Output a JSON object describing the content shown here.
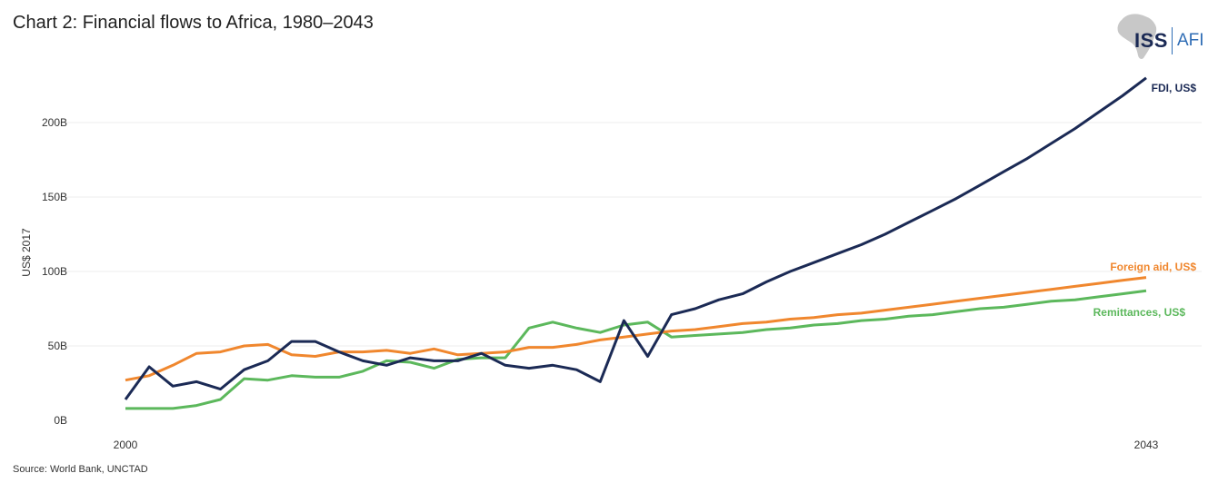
{
  "title": "Chart 2: Financial flows to Africa, 1980–2043",
  "source": "Source: World Bank, UNCTAD",
  "logo": {
    "left": "ISS",
    "right": "AFI"
  },
  "colors": {
    "fdi": "#1b2a55",
    "aid": "#f0872e",
    "remittances": "#5cb85c",
    "grid": "#ececec"
  },
  "chart_data": {
    "type": "line",
    "ylabel": "US$ 2017",
    "ylim": [
      0,
      230
    ],
    "y_ticks": [
      {
        "value": 0,
        "label": "0B"
      },
      {
        "value": 50,
        "label": "50B"
      },
      {
        "value": 100,
        "label": "100B"
      },
      {
        "value": 150,
        "label": "150B"
      },
      {
        "value": 200,
        "label": "200B"
      }
    ],
    "x_ticks": [
      {
        "value": 2000,
        "label": "2000"
      },
      {
        "value": 2043,
        "label": "2043"
      }
    ],
    "xlim": [
      2000,
      2043
    ],
    "grid": true,
    "series": [
      {
        "key": "fdi",
        "name": "FDI, US$",
        "color": "#1b2a55",
        "values": [
          [
            2000,
            14
          ],
          [
            2001,
            36
          ],
          [
            2002,
            23
          ],
          [
            2003,
            26
          ],
          [
            2004,
            21
          ],
          [
            2005,
            34
          ],
          [
            2006,
            40
          ],
          [
            2007,
            53
          ],
          [
            2008,
            53
          ],
          [
            2009,
            46
          ],
          [
            2010,
            40
          ],
          [
            2011,
            37
          ],
          [
            2012,
            42
          ],
          [
            2013,
            40
          ],
          [
            2014,
            40
          ],
          [
            2015,
            45
          ],
          [
            2016,
            37
          ],
          [
            2017,
            35
          ],
          [
            2018,
            37
          ],
          [
            2019,
            34
          ],
          [
            2020,
            26
          ],
          [
            2021,
            67
          ],
          [
            2022,
            43
          ],
          [
            2023,
            71
          ],
          [
            2024,
            75
          ],
          [
            2025,
            81
          ],
          [
            2026,
            85
          ],
          [
            2027,
            93
          ],
          [
            2028,
            100
          ],
          [
            2029,
            106
          ],
          [
            2030,
            112
          ],
          [
            2031,
            118
          ],
          [
            2032,
            125
          ],
          [
            2033,
            133
          ],
          [
            2034,
            141
          ],
          [
            2035,
            149
          ],
          [
            2036,
            158
          ],
          [
            2037,
            167
          ],
          [
            2038,
            176
          ],
          [
            2039,
            186
          ],
          [
            2040,
            196
          ],
          [
            2041,
            207
          ],
          [
            2042,
            218
          ],
          [
            2043,
            230
          ]
        ]
      },
      {
        "key": "aid",
        "name": "Foreign aid, US$",
        "color": "#f0872e",
        "values": [
          [
            2000,
            27
          ],
          [
            2001,
            30
          ],
          [
            2002,
            37
          ],
          [
            2003,
            45
          ],
          [
            2004,
            46
          ],
          [
            2005,
            50
          ],
          [
            2006,
            51
          ],
          [
            2007,
            44
          ],
          [
            2008,
            43
          ],
          [
            2009,
            46
          ],
          [
            2010,
            46
          ],
          [
            2011,
            47
          ],
          [
            2012,
            45
          ],
          [
            2013,
            48
          ],
          [
            2014,
            44
          ],
          [
            2015,
            45
          ],
          [
            2016,
            46
          ],
          [
            2017,
            49
          ],
          [
            2018,
            49
          ],
          [
            2019,
            51
          ],
          [
            2020,
            54
          ],
          [
            2021,
            56
          ],
          [
            2022,
            58
          ],
          [
            2023,
            60
          ],
          [
            2024,
            61
          ],
          [
            2025,
            63
          ],
          [
            2026,
            65
          ],
          [
            2027,
            66
          ],
          [
            2028,
            68
          ],
          [
            2029,
            69
          ],
          [
            2030,
            71
          ],
          [
            2031,
            72
          ],
          [
            2032,
            74
          ],
          [
            2033,
            76
          ],
          [
            2034,
            78
          ],
          [
            2035,
            80
          ],
          [
            2036,
            82
          ],
          [
            2037,
            84
          ],
          [
            2038,
            86
          ],
          [
            2039,
            88
          ],
          [
            2040,
            90
          ],
          [
            2041,
            92
          ],
          [
            2042,
            94
          ],
          [
            2043,
            96
          ]
        ]
      },
      {
        "key": "remittances",
        "name": "Remittances, US$",
        "color": "#5cb85c",
        "values": [
          [
            2000,
            8
          ],
          [
            2001,
            8
          ],
          [
            2002,
            8
          ],
          [
            2003,
            10
          ],
          [
            2004,
            14
          ],
          [
            2005,
            28
          ],
          [
            2006,
            27
          ],
          [
            2007,
            30
          ],
          [
            2008,
            29
          ],
          [
            2009,
            29
          ],
          [
            2010,
            33
          ],
          [
            2011,
            40
          ],
          [
            2012,
            39
          ],
          [
            2013,
            35
          ],
          [
            2014,
            41
          ],
          [
            2015,
            42
          ],
          [
            2016,
            42
          ],
          [
            2017,
            62
          ],
          [
            2018,
            66
          ],
          [
            2019,
            62
          ],
          [
            2020,
            59
          ],
          [
            2021,
            64
          ],
          [
            2022,
            66
          ],
          [
            2023,
            56
          ],
          [
            2024,
            57
          ],
          [
            2025,
            58
          ],
          [
            2026,
            59
          ],
          [
            2027,
            61
          ],
          [
            2028,
            62
          ],
          [
            2029,
            64
          ],
          [
            2030,
            65
          ],
          [
            2031,
            67
          ],
          [
            2032,
            68
          ],
          [
            2033,
            70
          ],
          [
            2034,
            71
          ],
          [
            2035,
            73
          ],
          [
            2036,
            75
          ],
          [
            2037,
            76
          ],
          [
            2038,
            78
          ],
          [
            2039,
            80
          ],
          [
            2040,
            81
          ],
          [
            2041,
            83
          ],
          [
            2042,
            85
          ],
          [
            2043,
            87
          ]
        ]
      }
    ]
  }
}
